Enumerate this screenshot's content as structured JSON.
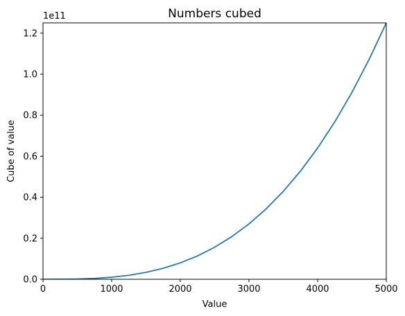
{
  "chart_data": {
    "type": "line",
    "title": "Numbers cubed",
    "xlabel": "Value",
    "ylabel": "Cube of value",
    "y_offset_label": "1e11",
    "xlim": [
      0,
      5000
    ],
    "ylim": [
      0,
      125000000000.0
    ],
    "x_ticks": [
      0,
      1000,
      2000,
      3000,
      4000,
      5000
    ],
    "x_tick_labels": [
      "0",
      "1000",
      "2000",
      "3000",
      "4000",
      "5000"
    ],
    "y_ticks": [
      0,
      20000000000.0,
      40000000000.0,
      60000000000.0,
      80000000000.0,
      100000000000.0,
      120000000000.0
    ],
    "y_tick_labels": [
      "0.0",
      "0.2",
      "0.4",
      "0.6",
      "0.8",
      "1.0",
      "1.2"
    ],
    "grid": false,
    "series": [
      {
        "color": "#1f77b4",
        "x": [
          0,
          250,
          500,
          750,
          1000,
          1250,
          1500,
          1750,
          2000,
          2250,
          2500,
          2750,
          3000,
          3250,
          3500,
          3750,
          4000,
          4250,
          4500,
          4750,
          5000
        ],
        "values": [
          0,
          15625000,
          125000000,
          421875000,
          1000000000,
          1953125000,
          3375000000,
          5359375000,
          8000000000,
          11390625000,
          15625000000,
          20796875000,
          27000000000,
          34328125000,
          42875000000,
          52734375000,
          64000000000,
          76765625000,
          91125000000,
          107171875000,
          125000000000
        ]
      }
    ]
  }
}
